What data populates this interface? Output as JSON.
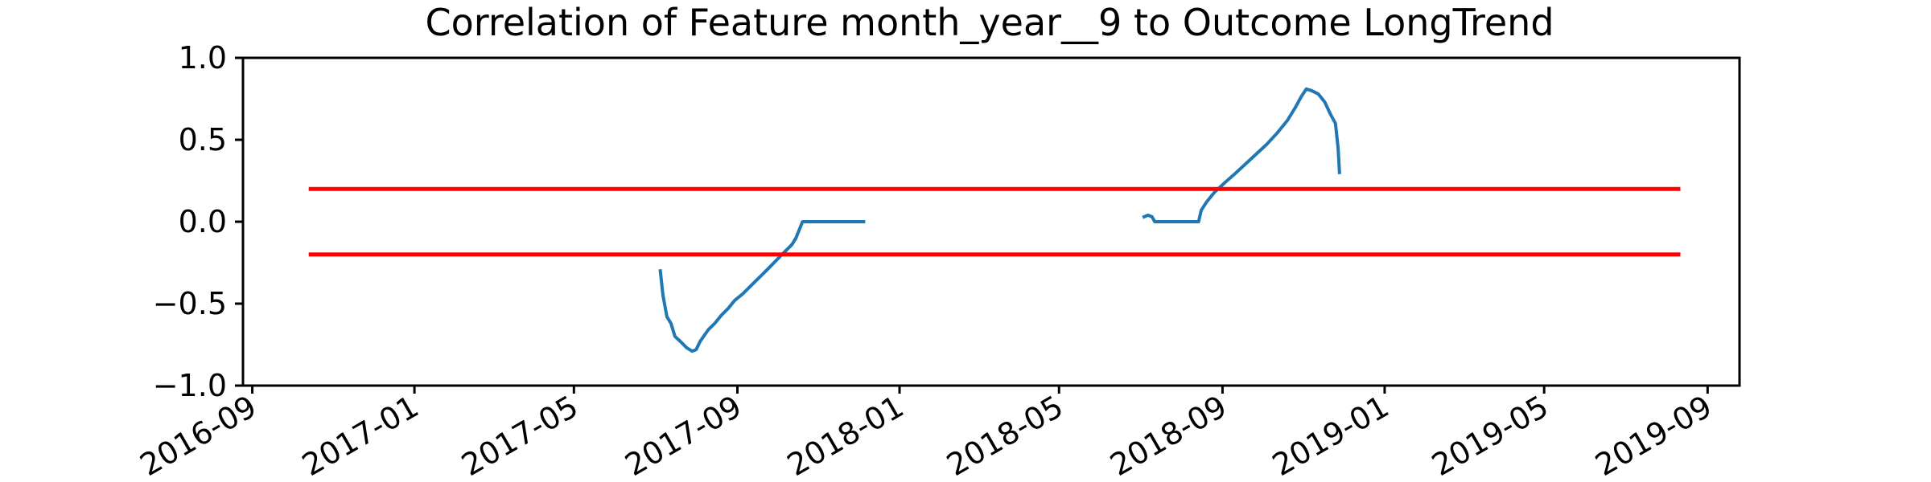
{
  "chart_data": {
    "type": "line",
    "title": "Correlation of Feature month_year__9 to Outcome LongTrend",
    "xlabel": "",
    "ylabel": "",
    "xlim": [
      "2016-08-25",
      "2019-09-25"
    ],
    "ylim": [
      -1.0,
      1.0
    ],
    "grid": false,
    "x_ticks": [
      "2016-09",
      "2017-01",
      "2017-05",
      "2017-09",
      "2018-01",
      "2018-05",
      "2018-09",
      "2019-01",
      "2019-05",
      "2019-09"
    ],
    "y_ticks": [
      "1.0",
      "0.5",
      "0.0",
      "−0.5",
      "−1.0"
    ],
    "series": [
      {
        "color": "#1f77b4",
        "segments": [
          [
            [
              "2017-07-05",
              -0.3
            ],
            [
              "2017-07-07",
              -0.45
            ],
            [
              "2017-07-10",
              -0.58
            ],
            [
              "2017-07-13",
              -0.62
            ],
            [
              "2017-07-16",
              -0.7
            ],
            [
              "2017-07-20",
              -0.73
            ],
            [
              "2017-07-25",
              -0.77
            ],
            [
              "2017-07-29",
              -0.79
            ],
            [
              "2017-08-01",
              -0.78
            ],
            [
              "2017-08-04",
              -0.73
            ],
            [
              "2017-08-10",
              -0.66
            ],
            [
              "2017-08-15",
              -0.62
            ],
            [
              "2017-08-20",
              -0.57
            ],
            [
              "2017-08-25",
              -0.53
            ],
            [
              "2017-08-30",
              -0.48
            ],
            [
              "2017-09-05",
              -0.44
            ],
            [
              "2017-09-10",
              -0.4
            ],
            [
              "2017-09-15",
              -0.36
            ],
            [
              "2017-09-20",
              -0.32
            ],
            [
              "2017-09-25",
              -0.28
            ],
            [
              "2017-10-01",
              -0.23
            ],
            [
              "2017-10-07",
              -0.18
            ],
            [
              "2017-10-12",
              -0.14
            ],
            [
              "2017-10-15",
              -0.1
            ],
            [
              "2017-10-18",
              -0.04
            ],
            [
              "2017-10-20",
              0.0
            ],
            [
              "2017-11-10",
              0.0
            ],
            [
              "2017-12-05",
              0.0
            ]
          ],
          [
            [
              "2018-07-04",
              0.03
            ],
            [
              "2018-07-07",
              0.04
            ],
            [
              "2018-07-10",
              0.03
            ],
            [
              "2018-07-12",
              0.0
            ],
            [
              "2018-08-01",
              0.0
            ],
            [
              "2018-08-14",
              0.0
            ],
            [
              "2018-08-16",
              0.07
            ],
            [
              "2018-08-20",
              0.12
            ],
            [
              "2018-08-26",
              0.18
            ],
            [
              "2018-09-03",
              0.24
            ],
            [
              "2018-09-10",
              0.29
            ],
            [
              "2018-09-18",
              0.35
            ],
            [
              "2018-09-26",
              0.41
            ],
            [
              "2018-10-04",
              0.47
            ],
            [
              "2018-10-12",
              0.54
            ],
            [
              "2018-10-20",
              0.62
            ],
            [
              "2018-10-26",
              0.7
            ],
            [
              "2018-10-30",
              0.76
            ],
            [
              "2018-11-03",
              0.81
            ],
            [
              "2018-11-07",
              0.8
            ],
            [
              "2018-11-12",
              0.78
            ],
            [
              "2018-11-17",
              0.73
            ],
            [
              "2018-11-21",
              0.66
            ],
            [
              "2018-11-25",
              0.6
            ],
            [
              "2018-11-27",
              0.45
            ],
            [
              "2018-11-28",
              0.3
            ]
          ]
        ]
      },
      {
        "color": "#ff0000",
        "segments": [
          [
            [
              "2016-10-15",
              0.2
            ],
            [
              "2019-08-10",
              0.2
            ]
          ]
        ]
      },
      {
        "color": "#ff0000",
        "segments": [
          [
            [
              "2016-10-15",
              -0.2
            ],
            [
              "2019-08-10",
              -0.2
            ]
          ]
        ]
      }
    ]
  }
}
